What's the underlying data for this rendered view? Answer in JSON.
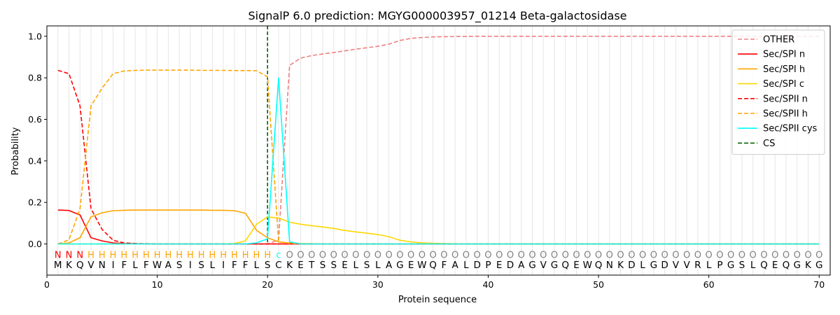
{
  "chart_data": {
    "type": "line",
    "title": "SignalP 6.0 prediction: MGYG000003957_01214 Beta-galactosidase",
    "xlabel": "Protein sequence",
    "ylabel": "Probability",
    "xlim": [
      0,
      71
    ],
    "ylim": [
      -0.15,
      1.05
    ],
    "xticks": [
      0,
      10,
      20,
      30,
      40,
      50,
      60,
      70
    ],
    "yticks": [
      0.0,
      0.2,
      0.4,
      0.6,
      0.8,
      1.0
    ],
    "sequence": [
      "M",
      "K",
      "Q",
      "V",
      "N",
      "I",
      "F",
      "L",
      "F",
      "W",
      "A",
      "S",
      "I",
      "S",
      "L",
      "I",
      "F",
      "F",
      "L",
      "S",
      "C",
      "K",
      "E",
      "T",
      "S",
      "S",
      "E",
      "L",
      "S",
      "L",
      "A",
      "G",
      "E",
      "W",
      "Q",
      "F",
      "A",
      "L",
      "D",
      "P",
      "E",
      "D",
      "A",
      "G",
      "V",
      "G",
      "Q",
      "E",
      "W",
      "Q",
      "N",
      "K",
      "D",
      "L",
      "G",
      "D",
      "V",
      "V",
      "R",
      "L",
      "P",
      "G",
      "S",
      "L",
      "Q",
      "E",
      "Q",
      "G",
      "K",
      "G"
    ],
    "regions": [
      "N",
      "N",
      "N",
      "H",
      "H",
      "H",
      "H",
      "H",
      "H",
      "H",
      "H",
      "H",
      "H",
      "H",
      "H",
      "H",
      "H",
      "H",
      "H",
      "H",
      "c",
      "O",
      "O",
      "O",
      "O",
      "O",
      "O",
      "O",
      "O",
      "O",
      "O",
      "O",
      "O",
      "O",
      "O",
      "O",
      "O",
      "O",
      "O",
      "O",
      "O",
      "O",
      "O",
      "O",
      "O",
      "O",
      "O",
      "O",
      "O",
      "O",
      "O",
      "O",
      "O",
      "O",
      "O",
      "O",
      "O",
      "O",
      "O",
      "O",
      "O",
      "O",
      "O",
      "O",
      "O",
      "O",
      "O",
      "O",
      "O",
      "O"
    ],
    "region_colors": {
      "N": "#ff0000",
      "H": "#ffa500",
      "c": "#00ffff",
      "O": "#808080"
    },
    "cleavage_site": 20,
    "legend_position": "upper right",
    "grid": "vertical lines at each residue",
    "series": [
      {
        "name": "OTHER",
        "color": "#f08080",
        "dash": "dashed",
        "values": [
          0.0,
          0.0,
          0.0,
          0.0,
          0.0,
          0.0,
          0.0,
          0.0,
          0.0,
          0.0,
          0.0,
          0.0,
          0.0,
          0.0,
          0.0,
          0.0,
          0.0,
          0.0,
          0.0,
          0.0,
          0.02,
          0.86,
          0.895,
          0.907,
          0.915,
          0.922,
          0.93,
          0.938,
          0.945,
          0.952,
          0.962,
          0.98,
          0.99,
          0.994,
          0.997,
          0.998,
          0.999,
          0.999,
          1.0,
          1.0,
          1.0,
          1.0,
          1.0,
          1.0,
          1.0,
          1.0,
          1.0,
          1.0,
          1.0,
          1.0,
          1.0,
          1.0,
          1.0,
          1.0,
          1.0,
          1.0,
          1.0,
          1.0,
          1.0,
          1.0,
          1.0,
          1.0,
          1.0,
          1.0,
          1.0,
          1.0,
          1.0,
          1.0,
          1.0,
          1.0
        ]
      },
      {
        "name": "Sec/SPI n",
        "color": "#ff0000",
        "dash": "solid",
        "values": [
          0.163,
          0.161,
          0.14,
          0.03,
          0.015,
          0.005,
          0.002,
          0.001,
          0.0,
          0.0,
          0.0,
          0.0,
          0.0,
          0.0,
          0.0,
          0.0,
          0.0,
          0.0,
          0.0,
          0.0,
          0.0,
          0.0,
          0.0,
          0.0,
          0.0,
          0.0,
          0.0,
          0.0,
          0.0,
          0.0,
          0.0,
          0.0,
          0.0,
          0.0,
          0.0,
          0.0,
          0.0,
          0.0,
          0.0,
          0.0,
          0.0,
          0.0,
          0.0,
          0.0,
          0.0,
          0.0,
          0.0,
          0.0,
          0.0,
          0.0,
          0.0,
          0.0,
          0.0,
          0.0,
          0.0,
          0.0,
          0.0,
          0.0,
          0.0,
          0.0,
          0.0,
          0.0,
          0.0,
          0.0,
          0.0,
          0.0,
          0.0,
          0.0,
          0.0,
          0.0
        ]
      },
      {
        "name": "Sec/SPI h",
        "color": "#ffa500",
        "dash": "solid",
        "values": [
          0.0,
          0.005,
          0.03,
          0.13,
          0.15,
          0.16,
          0.162,
          0.163,
          0.163,
          0.163,
          0.163,
          0.163,
          0.163,
          0.163,
          0.162,
          0.162,
          0.16,
          0.148,
          0.065,
          0.03,
          0.01,
          0.005,
          0.002,
          0.001,
          0.0,
          0.0,
          0.0,
          0.0,
          0.0,
          0.0,
          0.0,
          0.0,
          0.0,
          0.0,
          0.0,
          0.0,
          0.0,
          0.0,
          0.0,
          0.0,
          0.0,
          0.0,
          0.0,
          0.0,
          0.0,
          0.0,
          0.0,
          0.0,
          0.0,
          0.0,
          0.0,
          0.0,
          0.0,
          0.0,
          0.0,
          0.0,
          0.0,
          0.0,
          0.0,
          0.0,
          0.0,
          0.0,
          0.0,
          0.0,
          0.0,
          0.0,
          0.0,
          0.0,
          0.0,
          0.0
        ]
      },
      {
        "name": "Sec/SPI c",
        "color": "#ffd700",
        "dash": "solid",
        "values": [
          0.0,
          0.0,
          0.0,
          0.0,
          0.0,
          0.0,
          0.0,
          0.0,
          0.0,
          0.0,
          0.0,
          0.0,
          0.0,
          0.0,
          0.0,
          0.0,
          0.002,
          0.015,
          0.095,
          0.13,
          0.125,
          0.105,
          0.095,
          0.088,
          0.082,
          0.075,
          0.065,
          0.058,
          0.052,
          0.045,
          0.035,
          0.018,
          0.01,
          0.005,
          0.003,
          0.002,
          0.001,
          0.0,
          0.0,
          0.0,
          0.0,
          0.0,
          0.0,
          0.0,
          0.0,
          0.0,
          0.0,
          0.0,
          0.0,
          0.0,
          0.0,
          0.0,
          0.0,
          0.0,
          0.0,
          0.0,
          0.0,
          0.0,
          0.0,
          0.0,
          0.0,
          0.0,
          0.0,
          0.0,
          0.0,
          0.0,
          0.0,
          0.0,
          0.0,
          0.0
        ]
      },
      {
        "name": "Sec/SPII n",
        "color": "#ff0000",
        "dash": "dashed",
        "values": [
          0.836,
          0.82,
          0.665,
          0.17,
          0.07,
          0.018,
          0.005,
          0.002,
          0.001,
          0.0,
          0.0,
          0.0,
          0.0,
          0.0,
          0.0,
          0.0,
          0.0,
          0.0,
          0.0,
          0.0,
          0.0,
          0.0,
          0.0,
          0.0,
          0.0,
          0.0,
          0.0,
          0.0,
          0.0,
          0.0,
          0.0,
          0.0,
          0.0,
          0.0,
          0.0,
          0.0,
          0.0,
          0.0,
          0.0,
          0.0,
          0.0,
          0.0,
          0.0,
          0.0,
          0.0,
          0.0,
          0.0,
          0.0,
          0.0,
          0.0,
          0.0,
          0.0,
          0.0,
          0.0,
          0.0,
          0.0,
          0.0,
          0.0,
          0.0,
          0.0,
          0.0,
          0.0,
          0.0,
          0.0,
          0.0,
          0.0,
          0.0,
          0.0,
          0.0,
          0.0
        ]
      },
      {
        "name": "Sec/SPII h",
        "color": "#ffa500",
        "dash": "dashed",
        "values": [
          0.0,
          0.02,
          0.17,
          0.665,
          0.75,
          0.82,
          0.833,
          0.836,
          0.837,
          0.837,
          0.837,
          0.837,
          0.837,
          0.836,
          0.836,
          0.836,
          0.835,
          0.835,
          0.834,
          0.805,
          0.01,
          0.003,
          0.001,
          0.0,
          0.0,
          0.0,
          0.0,
          0.0,
          0.0,
          0.0,
          0.0,
          0.0,
          0.0,
          0.0,
          0.0,
          0.0,
          0.0,
          0.0,
          0.0,
          0.0,
          0.0,
          0.0,
          0.0,
          0.0,
          0.0,
          0.0,
          0.0,
          0.0,
          0.0,
          0.0,
          0.0,
          0.0,
          0.0,
          0.0,
          0.0,
          0.0,
          0.0,
          0.0,
          0.0,
          0.0,
          0.0,
          0.0,
          0.0,
          0.0,
          0.0,
          0.0,
          0.0,
          0.0,
          0.0,
          0.0
        ]
      },
      {
        "name": "Sec/SPII cys",
        "color": "#00ffff",
        "dash": "solid",
        "values": [
          0.0,
          0.0,
          0.0,
          0.0,
          0.0,
          0.0,
          0.0,
          0.0,
          0.0,
          0.0,
          0.0,
          0.0,
          0.0,
          0.0,
          0.0,
          0.0,
          0.0,
          0.0,
          0.005,
          0.025,
          0.8,
          0.01,
          0.0,
          0.0,
          0.0,
          0.0,
          0.0,
          0.0,
          0.0,
          0.0,
          0.0,
          0.0,
          0.0,
          0.0,
          0.0,
          0.0,
          0.0,
          0.0,
          0.0,
          0.0,
          0.0,
          0.0,
          0.0,
          0.0,
          0.0,
          0.0,
          0.0,
          0.0,
          0.0,
          0.0,
          0.0,
          0.0,
          0.0,
          0.0,
          0.0,
          0.0,
          0.0,
          0.0,
          0.0,
          0.0,
          0.0,
          0.0,
          0.0,
          0.0,
          0.0,
          0.0,
          0.0,
          0.0,
          0.0,
          0.0
        ]
      }
    ],
    "cs_legend": {
      "name": "CS",
      "color": "#006400",
      "dash": "dashed"
    }
  }
}
